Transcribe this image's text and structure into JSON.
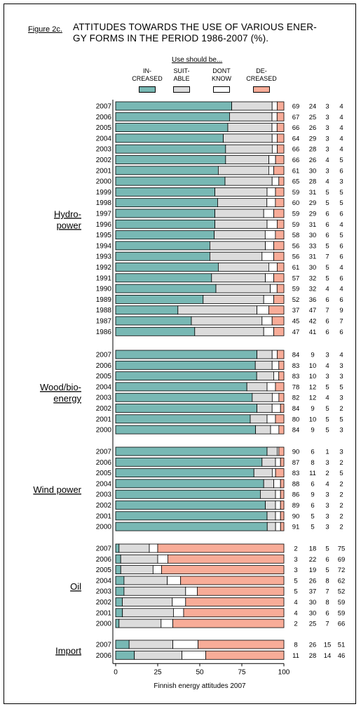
{
  "figure_label": "Figure 2c.",
  "title_line1": "ATTITUDES TOWARDS THE USE OF VARIOUS ENER-",
  "title_line2": "GY FORMS IN THE PERIOD 1986-2007 (%).",
  "legend_heading": "Use should be...",
  "legend": [
    {
      "line1": "IN-",
      "line2": "CREASED",
      "color": "#78b8b4"
    },
    {
      "line1": "SUIT-",
      "line2": "ABLE",
      "color": "#dcdcdc"
    },
    {
      "line1": "DONT",
      "line2": "KNOW",
      "color": "#ffffff"
    },
    {
      "line1": "DE-",
      "line2": "CREASED",
      "color": "#f8ac98"
    }
  ],
  "xlabel": "Finnish energy attitudes 2007",
  "chart_data": {
    "type": "bar",
    "orientation": "horizontal",
    "stacked": true,
    "xlim": [
      0,
      100
    ],
    "xticks": [
      "0",
      "25",
      "50",
      "75",
      "100"
    ],
    "series": [
      "Increased",
      "Suitable",
      "Dont know",
      "Decreased"
    ],
    "groups": [
      {
        "name_lines": [
          "Hydro-",
          "power"
        ],
        "rows": [
          {
            "year": "2007",
            "values": [
              69,
              24,
              3,
              4
            ]
          },
          {
            "year": "2006",
            "values": [
              67,
              25,
              3,
              4
            ]
          },
          {
            "year": "2005",
            "values": [
              66,
              26,
              3,
              4
            ]
          },
          {
            "year": "2004",
            "values": [
              64,
              29,
              3,
              4
            ]
          },
          {
            "year": "2003",
            "values": [
              66,
              28,
              3,
              4
            ]
          },
          {
            "year": "2002",
            "values": [
              66,
              26,
              4,
              5
            ]
          },
          {
            "year": "2001",
            "values": [
              61,
              30,
              3,
              6
            ]
          },
          {
            "year": "2000",
            "values": [
              65,
              28,
              4,
              3
            ]
          },
          {
            "year": "1999",
            "values": [
              59,
              31,
              5,
              5
            ]
          },
          {
            "year": "1998",
            "values": [
              60,
              29,
              5,
              5
            ]
          },
          {
            "year": "1997",
            "values": [
              59,
              29,
              6,
              6
            ]
          },
          {
            "year": "1996",
            "values": [
              59,
              31,
              6,
              4
            ]
          },
          {
            "year": "1995",
            "values": [
              58,
              30,
              6,
              5
            ]
          },
          {
            "year": "1994",
            "values": [
              56,
              33,
              5,
              6
            ]
          },
          {
            "year": "1993",
            "values": [
              56,
              31,
              7,
              6
            ]
          },
          {
            "year": "1992",
            "values": [
              61,
              30,
              5,
              4
            ]
          },
          {
            "year": "1991",
            "values": [
              57,
              32,
              5,
              6
            ]
          },
          {
            "year": "1990",
            "values": [
              59,
              32,
              4,
              4
            ]
          },
          {
            "year": "1989",
            "values": [
              52,
              36,
              6,
              6
            ]
          },
          {
            "year": "1988",
            "values": [
              37,
              47,
              7,
              9
            ]
          },
          {
            "year": "1987",
            "values": [
              45,
              42,
              6,
              7
            ]
          },
          {
            "year": "1986",
            "values": [
              47,
              41,
              6,
              6
            ]
          }
        ]
      },
      {
        "name_lines": [
          "Wood/bio-",
          "energy"
        ],
        "rows": [
          {
            "year": "2007",
            "values": [
              84,
              9,
              3,
              4
            ]
          },
          {
            "year": "2006",
            "values": [
              83,
              10,
              4,
              3
            ]
          },
          {
            "year": "2005",
            "values": [
              83,
              10,
              3,
              3
            ]
          },
          {
            "year": "2004",
            "values": [
              78,
              12,
              5,
              5
            ]
          },
          {
            "year": "2003",
            "values": [
              82,
              12,
              4,
              3
            ]
          },
          {
            "year": "2002",
            "values": [
              84,
              9,
              5,
              2
            ]
          },
          {
            "year": "2001",
            "values": [
              80,
              10,
              5,
              5
            ]
          },
          {
            "year": "2000",
            "values": [
              84,
              9,
              5,
              3
            ]
          }
        ]
      },
      {
        "name_lines": [
          "Wind power"
        ],
        "rows": [
          {
            "year": "2007",
            "values": [
              90,
              6,
              1,
              3
            ]
          },
          {
            "year": "2006",
            "values": [
              87,
              8,
              3,
              2
            ]
          },
          {
            "year": "2005",
            "values": [
              83,
              11,
              2,
              5
            ]
          },
          {
            "year": "2004",
            "values": [
              88,
              6,
              4,
              2
            ]
          },
          {
            "year": "2003",
            "values": [
              86,
              9,
              3,
              2
            ]
          },
          {
            "year": "2002",
            "values": [
              89,
              6,
              3,
              2
            ]
          },
          {
            "year": "2001",
            "values": [
              90,
              5,
              3,
              2
            ]
          },
          {
            "year": "2000",
            "values": [
              91,
              5,
              3,
              2
            ]
          }
        ]
      },
      {
        "name_lines": [
          "Oil"
        ],
        "rows": [
          {
            "year": "2007",
            "values": [
              2,
              18,
              5,
              75
            ]
          },
          {
            "year": "2006",
            "values": [
              3,
              22,
              6,
              69
            ]
          },
          {
            "year": "2005",
            "values": [
              3,
              19,
              5,
              72
            ]
          },
          {
            "year": "2004",
            "values": [
              5,
              26,
              8,
              62
            ]
          },
          {
            "year": "2003",
            "values": [
              5,
              37,
              7,
              52
            ]
          },
          {
            "year": "2002",
            "values": [
              4,
              30,
              8,
              59
            ]
          },
          {
            "year": "2001",
            "values": [
              4,
              30,
              6,
              59
            ]
          },
          {
            "year": "2000",
            "values": [
              2,
              25,
              7,
              66
            ]
          }
        ]
      },
      {
        "name_lines": [
          "Import"
        ],
        "rows": [
          {
            "year": "2007",
            "values": [
              8,
              26,
              15,
              51
            ]
          },
          {
            "year": "2006",
            "values": [
              11,
              28,
              14,
              46
            ]
          }
        ]
      }
    ]
  }
}
